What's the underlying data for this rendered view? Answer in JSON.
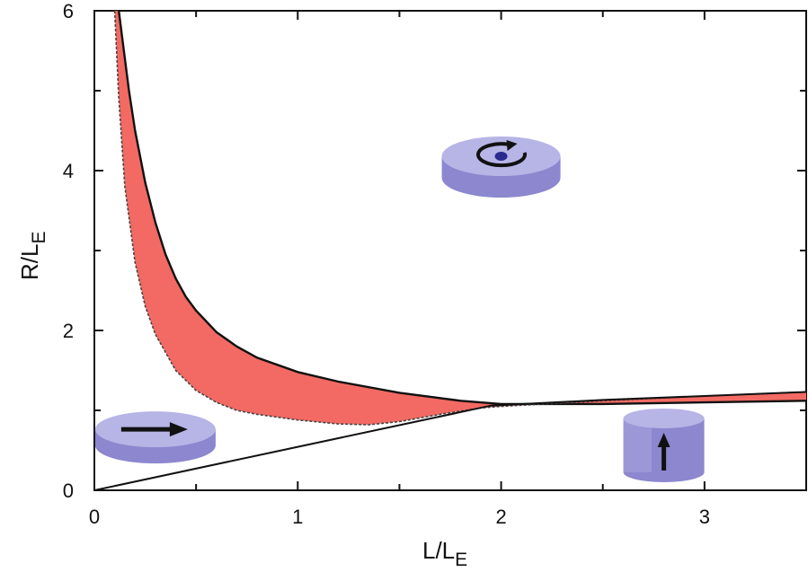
{
  "chart_data": {
    "type": "area",
    "xlabel": {
      "main": "L/L",
      "sub": "E"
    },
    "ylabel": {
      "main": "R/L",
      "sub": "E"
    },
    "xlim": [
      0,
      3.5
    ],
    "ylim": [
      0,
      6
    ],
    "x_ticks": [
      0,
      1,
      2,
      3
    ],
    "y_ticks": [
      0,
      2,
      4,
      6
    ],
    "region": {
      "name": "",
      "color": "#f26a63",
      "upper_boundary": {
        "x": [
          0.12,
          0.14,
          0.17,
          0.2,
          0.25,
          0.3,
          0.35,
          0.4,
          0.45,
          0.5,
          0.6,
          0.7,
          0.8,
          1.0,
          1.2,
          1.5,
          1.8,
          2.0,
          2.5,
          3.0,
          3.5
        ],
        "y": [
          6.0,
          5.6,
          5.0,
          4.5,
          3.85,
          3.35,
          2.95,
          2.65,
          2.42,
          2.25,
          1.98,
          1.8,
          1.66,
          1.48,
          1.36,
          1.22,
          1.12,
          1.08,
          1.08,
          1.1,
          1.12
        ]
      },
      "lower_boundary": {
        "x": [
          0.1,
          0.12,
          0.15,
          0.2,
          0.25,
          0.3,
          0.4,
          0.5,
          0.6,
          0.7,
          0.8,
          1.0,
          1.2,
          1.35,
          1.5,
          1.7,
          1.9,
          2.0,
          2.5,
          3.0,
          3.5
        ],
        "y": [
          6.0,
          4.9,
          3.8,
          2.85,
          2.3,
          1.95,
          1.5,
          1.25,
          1.1,
          1.0,
          0.95,
          0.88,
          0.83,
          0.82,
          0.86,
          0.95,
          1.03,
          1.05,
          1.12,
          1.18,
          1.23
        ]
      }
    },
    "line": {
      "x": [
        0,
        1.95,
        2.5,
        3.0,
        3.5
      ],
      "y": [
        0,
        1.06,
        1.13,
        1.18,
        1.23
      ]
    },
    "insets": [
      {
        "icon": "vortex-disk-icon",
        "x": 2.0,
        "y": 4.0
      },
      {
        "icon": "in-plane-disk-icon",
        "x": 0.3,
        "y": 0.65
      },
      {
        "icon": "perpendicular-pillar-icon",
        "x": 2.8,
        "y": 0.45
      }
    ],
    "colors": {
      "region_fill": "#f26a63",
      "boundary": "#111111",
      "disk_top": "#b7b4e6",
      "disk_side": "#8c87cf",
      "arrow": "#111111",
      "vortex_core": "#2b2a8f"
    }
  }
}
